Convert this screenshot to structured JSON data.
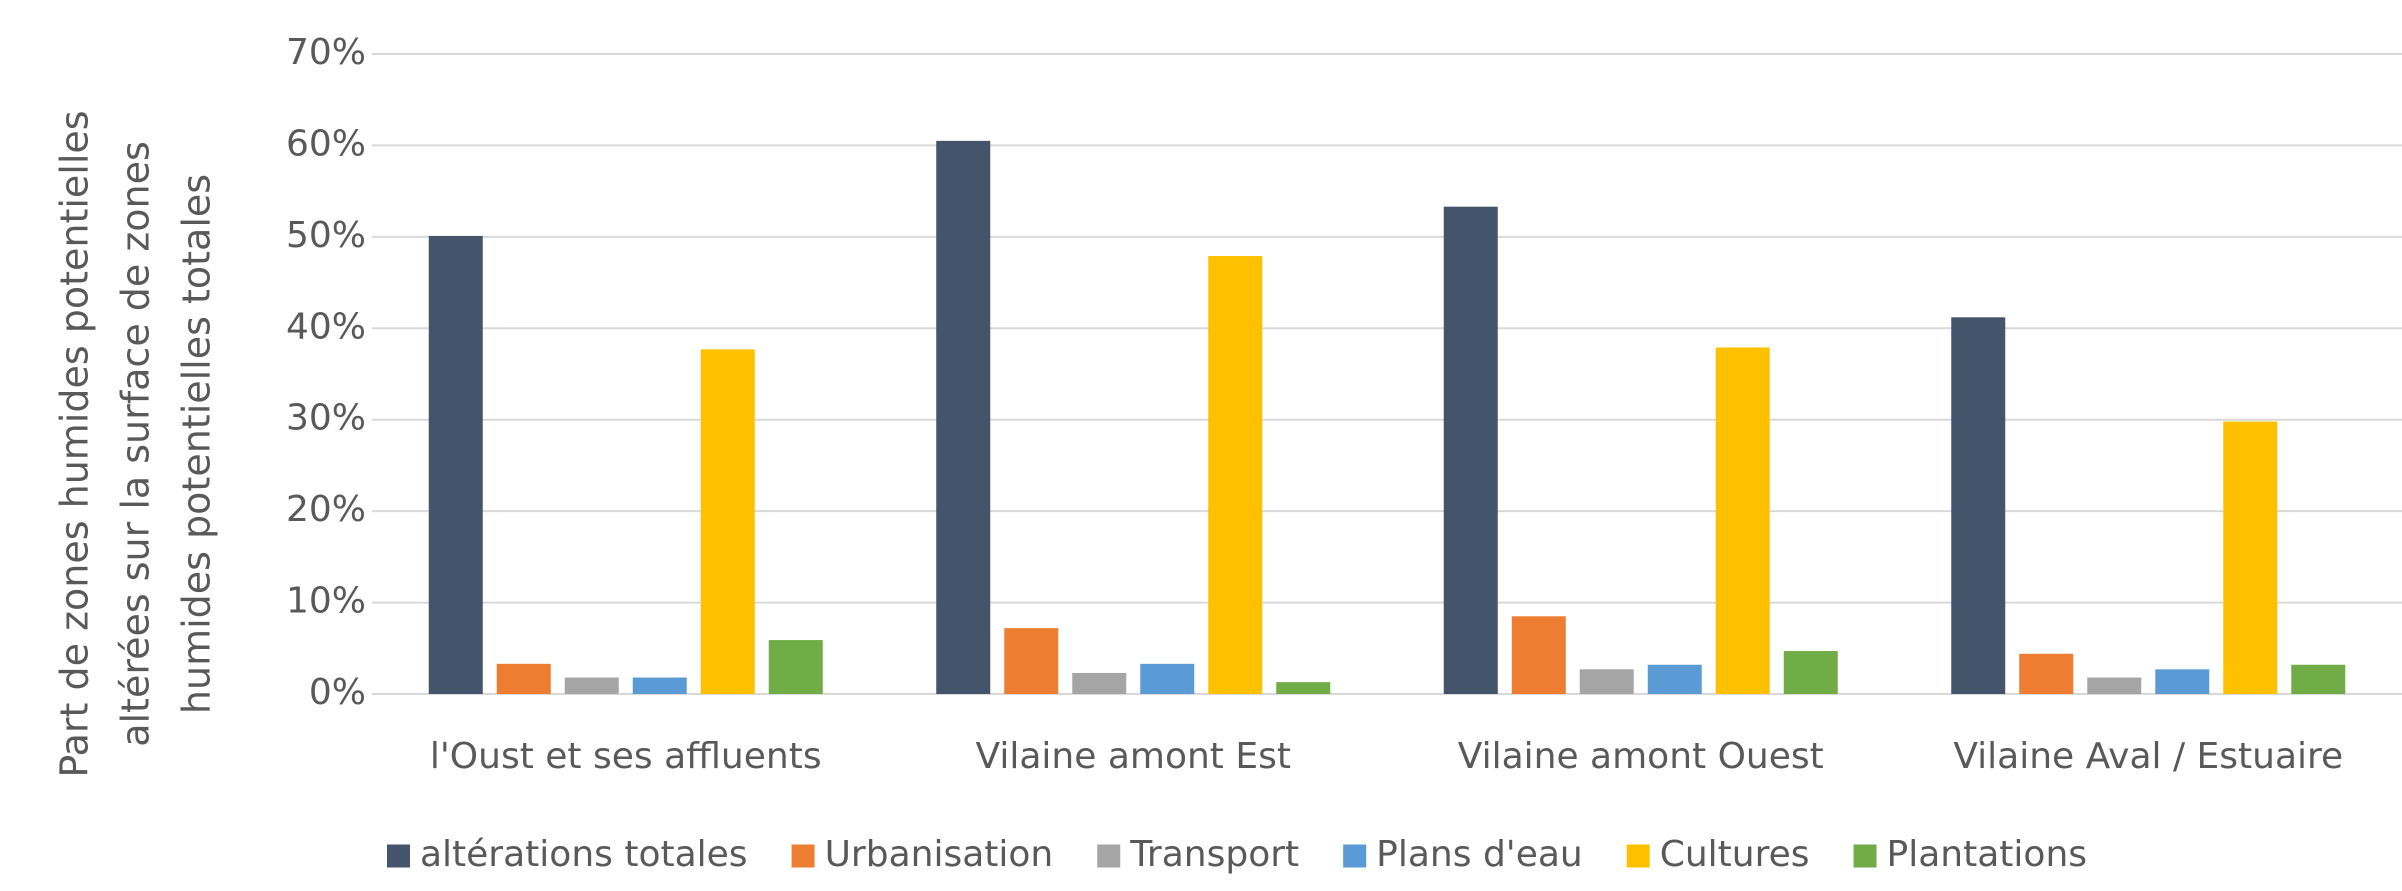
{
  "chart_data": {
    "type": "bar",
    "y_label": [
      "Part de zones humides potentielles",
      "altérées sur la surface de zones",
      "humides potentielles totales"
    ],
    "categories": [
      "l'Oust et ses affluents",
      "Vilaine amont Est",
      "Vilaine amont Ouest",
      "Vilaine Aval / Estuaire"
    ],
    "series": [
      {
        "name": "altérations totales",
        "color": "#44546a",
        "values": [
          50.1,
          60.5,
          53.3,
          41.2
        ]
      },
      {
        "name": "Urbanisation",
        "color": "#ed7d31",
        "values": [
          3.3,
          7.2,
          8.5,
          4.4
        ]
      },
      {
        "name": "Transport",
        "color": "#a5a5a5",
        "values": [
          1.8,
          2.3,
          2.7,
          1.8
        ]
      },
      {
        "name": "Plans d'eau",
        "color": "#5b9bd5",
        "values": [
          1.8,
          3.3,
          3.2,
          2.7
        ]
      },
      {
        "name": "Cultures",
        "color": "#ffc000",
        "values": [
          37.7,
          47.9,
          37.9,
          29.8
        ]
      },
      {
        "name": "Plantations",
        "color": "#70ad47",
        "values": [
          5.9,
          1.3,
          4.7,
          3.2
        ]
      }
    ],
    "ylim": [
      0,
      70
    ],
    "yticks": [
      {
        "value": 0,
        "label": "0%"
      },
      {
        "value": 10,
        "label": "10%"
      },
      {
        "value": 20,
        "label": "20%"
      },
      {
        "value": 30,
        "label": "30%"
      },
      {
        "value": 40,
        "label": "40%"
      },
      {
        "value": 50,
        "label": "50%"
      },
      {
        "value": 60,
        "label": "60%"
      },
      {
        "value": 70,
        "label": "70%"
      }
    ],
    "grid": true,
    "legend": "bottom"
  }
}
